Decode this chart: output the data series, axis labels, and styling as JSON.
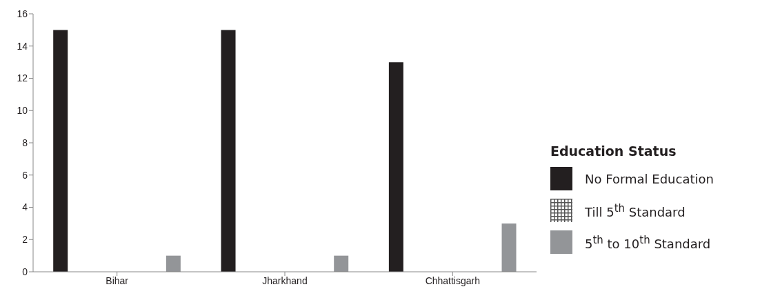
{
  "chart_data": {
    "type": "bar",
    "legend_title": "Education Status",
    "categories": [
      "Bihar",
      "Jharkhand",
      "Chhattisgarh"
    ],
    "series": [
      {
        "name": "No Formal Education",
        "color": "#231f20",
        "values": [
          15,
          15,
          13
        ]
      },
      {
        "name": "Till 5$^{th}$ Standard",
        "color": "#555555",
        "values": [
          0,
          0,
          0
        ]
      },
      {
        "name": "5$^{th}$ to 10$^{th}$ Standard",
        "color": "#939598",
        "values": [
          1,
          1,
          3
        ]
      }
    ],
    "ylim": [
      0,
      16
    ],
    "yticks": [
      0,
      2,
      4,
      6,
      8,
      10,
      12,
      14,
      16
    ],
    "grid": false,
    "legend": "right"
  }
}
